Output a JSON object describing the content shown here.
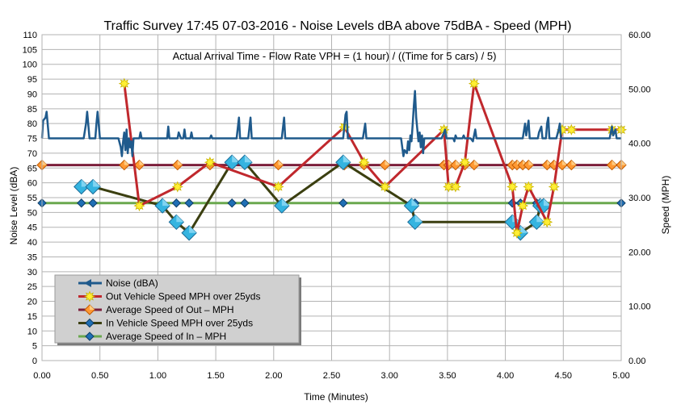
{
  "chart_data": {
    "type": "line",
    "title": "Traffic Survey 17:45 07-03-2016 - Noise Levels dBA above 75dBA - Speed (MPH)",
    "subtitle": "Actual Arrival Time - Flow Rate VPH = (1 hour) / ((Time for 5 cars) / 5)",
    "xlabel": "Time (Minutes)",
    "ylabel": "Noise Level (dBA)",
    "y2label": "Speed (MPH)",
    "xlim": [
      0,
      5
    ],
    "ylim": [
      0,
      110
    ],
    "y2lim": [
      0,
      60
    ],
    "xticks": [
      "0.00",
      "0.50",
      "1.00",
      "1.50",
      "2.00",
      "2.50",
      "3.00",
      "3.50",
      "4.00",
      "4.50",
      "5.00"
    ],
    "yticks": [
      "0",
      "5",
      "10",
      "15",
      "20",
      "25",
      "30",
      "35",
      "40",
      "45",
      "50",
      "55",
      "60",
      "65",
      "70",
      "75",
      "80",
      "85",
      "90",
      "95",
      "100",
      "105",
      "110"
    ],
    "y2ticks": [
      "0.00",
      "10.00",
      "20.00",
      "30.00",
      "40.00",
      "50.00",
      "60.00"
    ],
    "grid": true,
    "legend_position": "bottom-left",
    "series": [
      {
        "name": "Noise  (dBA)",
        "axis": "left",
        "color": "#1f5a8c",
        "marker": "none",
        "points": [
          [
            0,
            75
          ],
          [
            0.01,
            81
          ],
          [
            0.03,
            82
          ],
          [
            0.04,
            84
          ],
          [
            0.06,
            75
          ],
          [
            0.3,
            75
          ],
          [
            0.36,
            75
          ],
          [
            0.38,
            80
          ],
          [
            0.39,
            84
          ],
          [
            0.41,
            75
          ],
          [
            0.46,
            75
          ],
          [
            0.47,
            80
          ],
          [
            0.48,
            84
          ],
          [
            0.5,
            75
          ],
          [
            0.66,
            75
          ],
          [
            0.68,
            72
          ],
          [
            0.69,
            69
          ],
          [
            0.7,
            74
          ],
          [
            0.71,
            77
          ],
          [
            0.72,
            71
          ],
          [
            0.73,
            78
          ],
          [
            0.74,
            70
          ],
          [
            0.75,
            75
          ],
          [
            0.76,
            72
          ],
          [
            0.77,
            74
          ],
          [
            0.78,
            69
          ],
          [
            0.79,
            75
          ],
          [
            0.84,
            75
          ],
          [
            0.85,
            77
          ],
          [
            0.86,
            75
          ],
          [
            1.08,
            75
          ],
          [
            1.09,
            79
          ],
          [
            1.1,
            75
          ],
          [
            1.17,
            75
          ],
          [
            1.18,
            77
          ],
          [
            1.19,
            76
          ],
          [
            1.2,
            75
          ],
          [
            1.22,
            75
          ],
          [
            1.23,
            78
          ],
          [
            1.24,
            75
          ],
          [
            1.28,
            75
          ],
          [
            1.29,
            77
          ],
          [
            1.3,
            75
          ],
          [
            1.45,
            75
          ],
          [
            1.46,
            76
          ],
          [
            1.47,
            75
          ],
          [
            1.68,
            75
          ],
          [
            1.7,
            82
          ],
          [
            1.71,
            75
          ],
          [
            1.78,
            75
          ],
          [
            1.8,
            82
          ],
          [
            1.81,
            75
          ],
          [
            2.07,
            75
          ],
          [
            2.09,
            82
          ],
          [
            2.1,
            75
          ],
          [
            2.6,
            75
          ],
          [
            2.62,
            83
          ],
          [
            2.63,
            84
          ],
          [
            2.64,
            75
          ],
          [
            2.77,
            75
          ],
          [
            2.79,
            80
          ],
          [
            2.8,
            75
          ],
          [
            3.1,
            75
          ],
          [
            3.12,
            69
          ],
          [
            3.13,
            71
          ],
          [
            3.15,
            70
          ],
          [
            3.16,
            74
          ],
          [
            3.17,
            71
          ],
          [
            3.18,
            76
          ],
          [
            3.19,
            74
          ],
          [
            3.2,
            80
          ],
          [
            3.21,
            86
          ],
          [
            3.22,
            91
          ],
          [
            3.23,
            82
          ],
          [
            3.24,
            78
          ],
          [
            3.25,
            74
          ],
          [
            3.26,
            77
          ],
          [
            3.27,
            72
          ],
          [
            3.28,
            76
          ],
          [
            3.29,
            70
          ],
          [
            3.3,
            75
          ],
          [
            3.45,
            75
          ],
          [
            3.47,
            77
          ],
          [
            3.48,
            78
          ],
          [
            3.49,
            75
          ],
          [
            3.55,
            75
          ],
          [
            3.56,
            74
          ],
          [
            3.57,
            76
          ],
          [
            3.58,
            75
          ],
          [
            3.63,
            75
          ],
          [
            3.64,
            76
          ],
          [
            3.65,
            75
          ],
          [
            3.7,
            75
          ],
          [
            3.72,
            74
          ],
          [
            3.74,
            78
          ],
          [
            3.75,
            75
          ],
          [
            4.15,
            75
          ],
          [
            4.17,
            80
          ],
          [
            4.18,
            76
          ],
          [
            4.2,
            81
          ],
          [
            4.21,
            75
          ],
          [
            4.28,
            75
          ],
          [
            4.29,
            77
          ],
          [
            4.31,
            79
          ],
          [
            4.32,
            75
          ],
          [
            4.35,
            75
          ],
          [
            4.36,
            80
          ],
          [
            4.37,
            82
          ],
          [
            4.38,
            75
          ],
          [
            4.44,
            75
          ],
          [
            4.46,
            78
          ],
          [
            4.47,
            80
          ],
          [
            4.48,
            75
          ],
          [
            4.9,
            75
          ],
          [
            4.92,
            79
          ],
          [
            4.93,
            76
          ],
          [
            4.95,
            78
          ],
          [
            4.96,
            75
          ],
          [
            5.0,
            75
          ]
        ]
      },
      {
        "name": "Out Vehicle Speed MPH over 25yds",
        "axis": "right",
        "color": "#c0282d",
        "marker": "yellow-diamond",
        "points": [
          [
            0.71,
            51
          ],
          [
            0.84,
            28.5
          ],
          [
            1.17,
            32
          ],
          [
            1.45,
            36.5
          ],
          [
            2.04,
            32
          ],
          [
            2.61,
            43
          ],
          [
            2.78,
            36.5
          ],
          [
            2.96,
            32
          ],
          [
            3.47,
            42.5
          ],
          [
            3.51,
            32
          ],
          [
            3.57,
            32
          ],
          [
            3.65,
            36.5
          ],
          [
            3.73,
            51
          ],
          [
            4.06,
            32
          ],
          [
            4.1,
            23.5
          ],
          [
            4.15,
            28.5
          ],
          [
            4.2,
            32
          ],
          [
            4.36,
            25.5
          ],
          [
            4.42,
            32
          ],
          [
            4.49,
            42.5
          ],
          [
            4.57,
            42.5
          ],
          [
            4.92,
            42.5
          ],
          [
            5.0,
            42.5
          ]
        ]
      },
      {
        "name": "Average Speed of Out – MPH",
        "axis": "right",
        "color": "#7b1e3a",
        "marker": "orange-diamond",
        "points": [
          [
            0,
            36
          ],
          [
            0.71,
            36
          ],
          [
            0.84,
            36
          ],
          [
            1.17,
            36
          ],
          [
            1.45,
            36
          ],
          [
            2.04,
            36
          ],
          [
            2.61,
            36
          ],
          [
            2.78,
            36
          ],
          [
            2.96,
            36
          ],
          [
            3.47,
            36
          ],
          [
            3.51,
            36
          ],
          [
            3.57,
            36
          ],
          [
            3.65,
            36
          ],
          [
            3.73,
            36
          ],
          [
            4.06,
            36
          ],
          [
            4.1,
            36
          ],
          [
            4.15,
            36
          ],
          [
            4.2,
            36
          ],
          [
            4.36,
            36
          ],
          [
            4.42,
            36
          ],
          [
            4.49,
            36
          ],
          [
            4.57,
            36
          ],
          [
            4.92,
            36
          ],
          [
            5.0,
            36
          ]
        ]
      },
      {
        "name": "In Vehicle Speed MPH over 25yds",
        "axis": "right",
        "color": "#3b3f10",
        "marker": "blue-diamond",
        "points": [
          [
            0.34,
            32
          ],
          [
            0.44,
            32
          ],
          [
            1.04,
            28.5
          ],
          [
            1.16,
            25.5
          ],
          [
            1.27,
            23.5
          ],
          [
            1.64,
            36.5
          ],
          [
            1.75,
            36.5
          ],
          [
            2.07,
            28.5
          ],
          [
            2.6,
            36.5
          ],
          [
            3.19,
            28.5
          ],
          [
            3.22,
            25.5
          ],
          [
            4.06,
            25.5
          ],
          [
            4.13,
            23.5
          ],
          [
            4.27,
            25.5
          ],
          [
            4.3,
            28.5
          ],
          [
            4.33,
            28.5
          ]
        ]
      },
      {
        "name": "Average Speed of In – MPH",
        "axis": "right",
        "color": "#6aa84f",
        "marker": "small-blue-diamond",
        "points": [
          [
            0,
            29
          ],
          [
            0.34,
            29
          ],
          [
            0.44,
            29
          ],
          [
            1.04,
            29
          ],
          [
            1.16,
            29
          ],
          [
            1.27,
            29
          ],
          [
            1.64,
            29
          ],
          [
            1.75,
            29
          ],
          [
            2.07,
            29
          ],
          [
            2.6,
            29
          ],
          [
            3.19,
            29
          ],
          [
            3.22,
            29
          ],
          [
            4.06,
            29
          ],
          [
            4.13,
            29
          ],
          [
            4.27,
            29
          ],
          [
            4.3,
            29
          ],
          [
            4.33,
            29
          ],
          [
            5.0,
            29
          ]
        ]
      }
    ]
  }
}
